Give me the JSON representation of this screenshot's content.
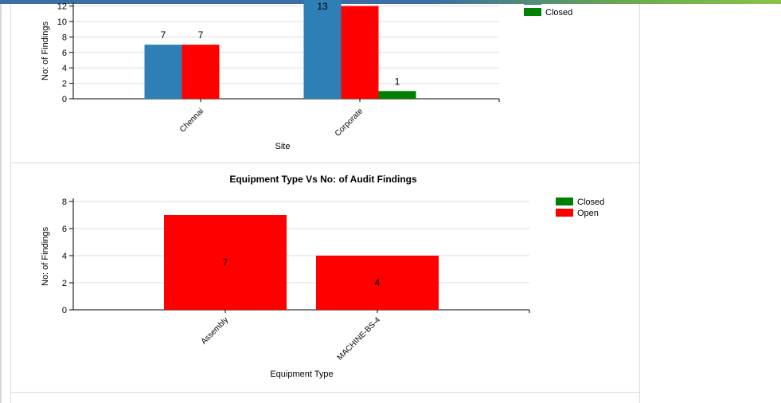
{
  "chart_data": [
    {
      "type": "bar",
      "xlabel": "Site",
      "ylabel": "No: of Findings",
      "ylim": [
        0,
        12
      ],
      "yticks": [
        0,
        2,
        4,
        6,
        8,
        10,
        12
      ],
      "categories": [
        "Chennai",
        "Corporate"
      ],
      "series": [
        {
          "name": "",
          "color": "#2e7fb5",
          "values": [
            7,
            13
          ],
          "labels": [
            "7",
            "13"
          ]
        },
        {
          "name": "",
          "color": "#ff0000",
          "values": [
            7,
            12
          ],
          "labels": [
            "7",
            ""
          ]
        },
        {
          "name": "Closed",
          "color": "#008000",
          "values": [
            0,
            1
          ],
          "labels": [
            "",
            "1"
          ]
        }
      ],
      "legend_position": "top-right",
      "legend": [
        {
          "label": "Closed",
          "color": "#008000"
        }
      ]
    },
    {
      "type": "bar",
      "title": "Equipment Type Vs No: of Audit Findings",
      "xlabel": "Equipment Type",
      "ylabel": "No: of Findings",
      "ylim": [
        0,
        8
      ],
      "yticks": [
        0,
        2,
        4,
        6,
        8
      ],
      "categories": [
        "Assembly",
        "MACHINE-BS-4"
      ],
      "series": [
        {
          "name": "Open",
          "color": "#ff0000",
          "values": [
            7,
            4
          ],
          "labels": [
            "7",
            "4"
          ]
        }
      ],
      "legend_position": "top-right",
      "legend": [
        {
          "label": "Closed",
          "color": "#008000"
        },
        {
          "label": "Open",
          "color": "#ff0000"
        }
      ]
    }
  ]
}
